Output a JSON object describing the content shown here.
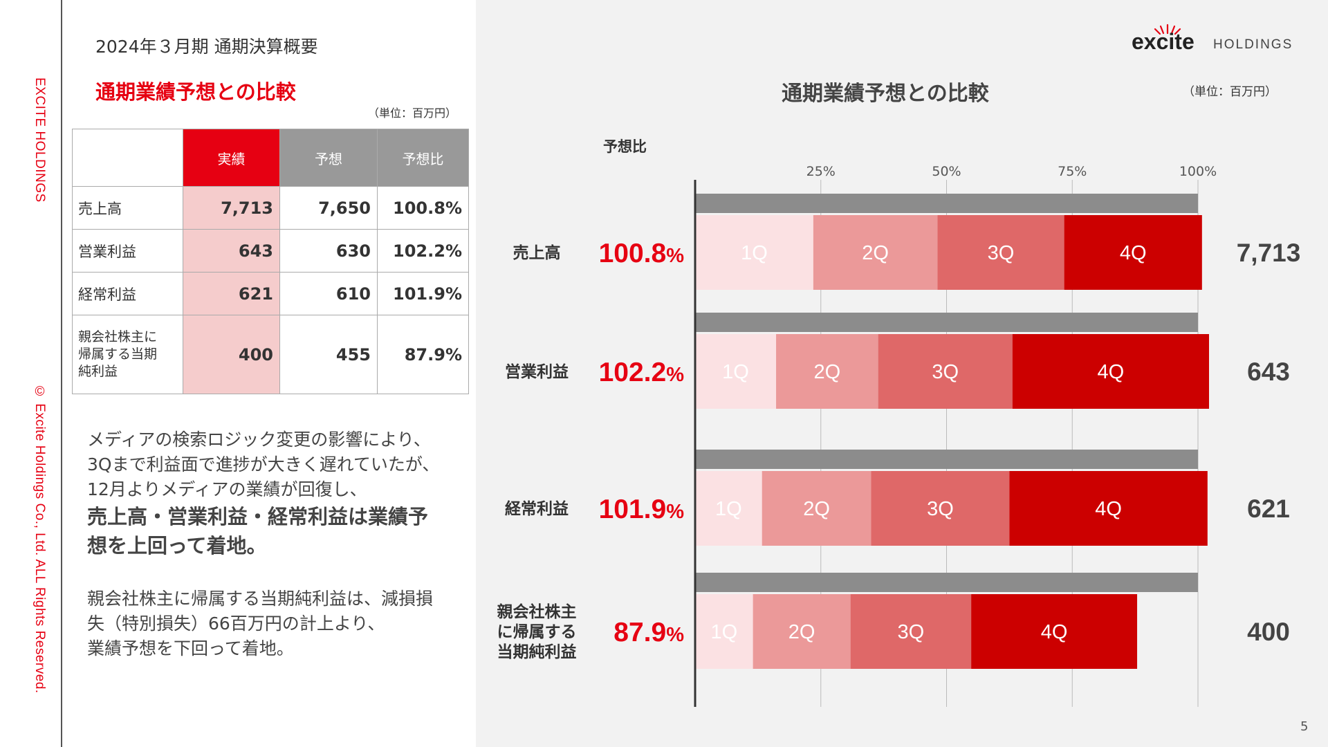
{
  "sidebar": {
    "brand": "EXCITE HOLDINGS",
    "copyright": "© Excite Holdings Co., Ltd. ALL Rights Reserved."
  },
  "header": {
    "section_title": "2024年３月期 通期決算概要",
    "logo_word": "excite",
    "logo_holdings": "HOLDINGS"
  },
  "left": {
    "heading": "通期業績予想との比較",
    "unit": "（単位：百万円）",
    "table": {
      "columns": [
        "実績",
        "予想",
        "予想比"
      ],
      "rows": [
        {
          "label": "売上高",
          "actual": "7,713",
          "forecast": "7,650",
          "ratio": "100.8%"
        },
        {
          "label": "営業利益",
          "actual": "643",
          "forecast": "630",
          "ratio": "102.2%"
        },
        {
          "label": "経常利益",
          "actual": "621",
          "forecast": "610",
          "ratio": "101.9%"
        },
        {
          "label_lines": [
            "親会社株主に",
            "帰属する当期",
            "純利益"
          ],
          "actual": "400",
          "forecast": "455",
          "ratio": "87.9%"
        }
      ]
    },
    "paragraph1": [
      "メディアの検索ロジック変更の影響により、",
      "3Qまで利益面で進捗が大きく遅れていたが、",
      "12月よりメディアの業績が回復し、"
    ],
    "paragraph1_bold": [
      "売上高・営業利益・経常利益は業績予",
      "想を上回って着地。"
    ],
    "paragraph2": [
      "親会社株主に帰属する当期純利益は、減損損",
      "失（特別損失）66百万円の計上より、",
      "業績予想を下回って着地。"
    ]
  },
  "chart_data": {
    "type": "bar",
    "title": "通期業績予想との比較",
    "unit": "（単位：百万円）",
    "ratio_header": "予想比",
    "x_ticks": [
      "25%",
      "50%",
      "75%",
      "100%"
    ],
    "xlim": [
      0,
      100
    ],
    "forecast_bar_value": 100,
    "colors": {
      "forecast": "#8c8c8c",
      "q1": "#fbe1e3",
      "q2": "#eb9999",
      "q3": "#df6868",
      "q4": "#cc0000",
      "ratio": "#e60012"
    },
    "quarter_labels": [
      "1Q",
      "2Q",
      "3Q",
      "4Q"
    ],
    "categories": [
      {
        "label_lines": [
          "売上高"
        ],
        "ratio": "100.8",
        "ratio_unit": "%",
        "total": "7,713",
        "quarters_pct": [
          23.5,
          24.7,
          25.2,
          27.4
        ]
      },
      {
        "label_lines": [
          "営業利益"
        ],
        "ratio": "102.2",
        "ratio_unit": "%",
        "total": "643",
        "quarters_pct": [
          16.1,
          20.3,
          26.7,
          39.1
        ]
      },
      {
        "label_lines": [
          "経常利益"
        ],
        "ratio": "101.9",
        "ratio_unit": "%",
        "total": "621",
        "quarters_pct": [
          13.3,
          21.7,
          27.5,
          39.4
        ]
      },
      {
        "label_lines": [
          "親会社株主",
          "に帰属する",
          "当期純利益"
        ],
        "ratio": "87.9",
        "ratio_unit": "%",
        "total": "400",
        "quarters_pct": [
          11.5,
          19.4,
          24.0,
          33.0
        ]
      }
    ]
  },
  "page_number": "5"
}
